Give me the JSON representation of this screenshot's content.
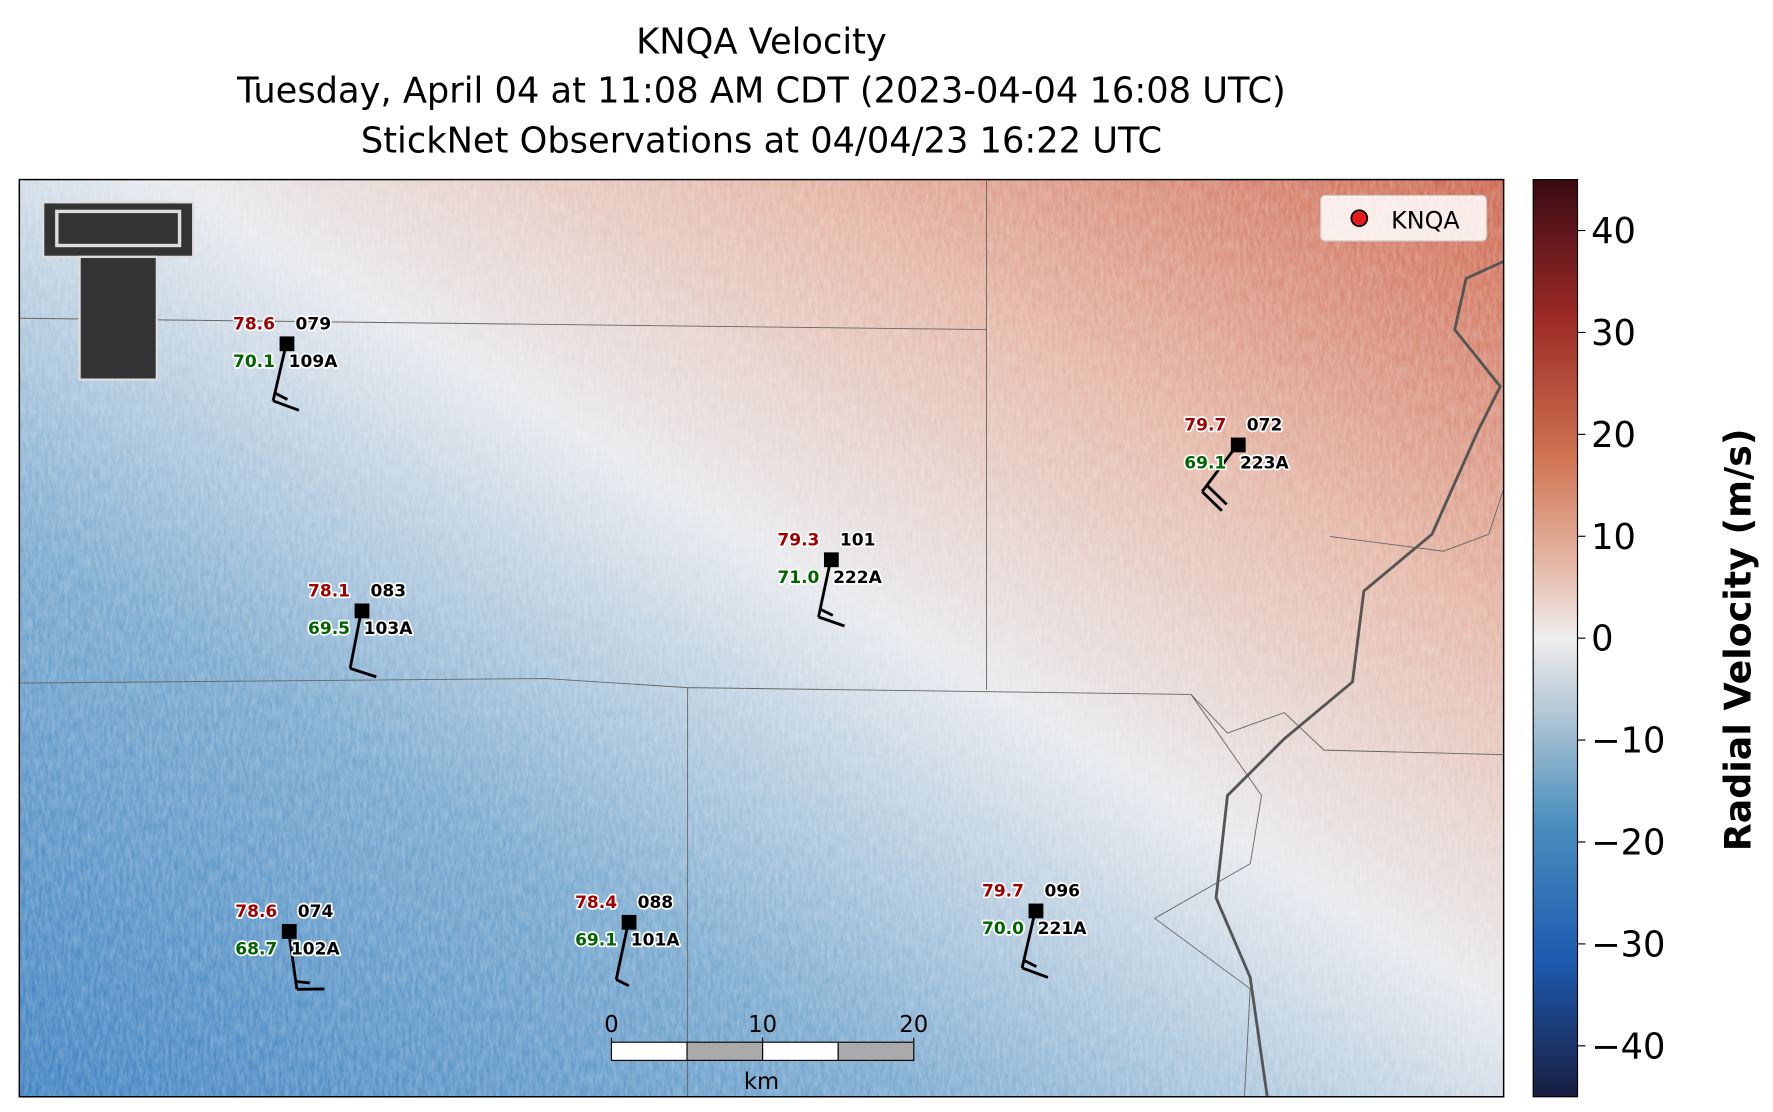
{
  "title": [
    "KNQA Velocity",
    "Tuesday, April 04 at 11:08 AM CDT (2023-04-04 16:08 UTC)",
    "StickNet Observations at 04/04/23 16:22 UTC"
  ],
  "legend": {
    "label": "KNQA",
    "color": "#e41a1c"
  },
  "colorbar": {
    "label": "Radial Velocity (m/s)",
    "lim": [
      -45,
      45
    ],
    "ticks": [
      40,
      30,
      20,
      10,
      0,
      {
        "value": -10,
        "label": "−10"
      },
      {
        "value": -20,
        "label": "−20"
      },
      {
        "value": -30,
        "label": "−30"
      },
      {
        "value": -40,
        "label": "−40"
      }
    ]
  },
  "scale_bar": {
    "unit": "km",
    "lim": [
      0,
      20
    ],
    "ticks": [
      0,
      10,
      20
    ]
  },
  "stations": [
    {
      "id": "109A",
      "number": "079",
      "temperature": "78.6",
      "dewpoint": "70.1",
      "wind_dir": 193,
      "wind_speed": 15
    },
    {
      "id": "103A",
      "number": "083",
      "temperature": "78.1",
      "dewpoint": "69.5",
      "wind_dir": 191,
      "wind_speed": 10
    },
    {
      "id": "222A",
      "number": "101",
      "temperature": "79.3",
      "dewpoint": "71.0",
      "wind_dir": 192,
      "wind_speed": 15
    },
    {
      "id": "223A",
      "number": "072",
      "temperature": "79.7",
      "dewpoint": "69.1",
      "wind_dir": 217,
      "wind_speed": 20
    },
    {
      "id": "102A",
      "number": "074",
      "temperature": "78.6",
      "dewpoint": "68.7",
      "wind_dir": 172,
      "wind_speed": 15
    },
    {
      "id": "101A",
      "number": "088",
      "temperature": "78.4",
      "dewpoint": "69.1",
      "wind_dir": 192,
      "wind_speed": 5
    },
    {
      "id": "221A",
      "number": "096",
      "temperature": "79.7",
      "dewpoint": "70.0",
      "wind_dir": 193,
      "wind_speed": 15
    }
  ]
}
